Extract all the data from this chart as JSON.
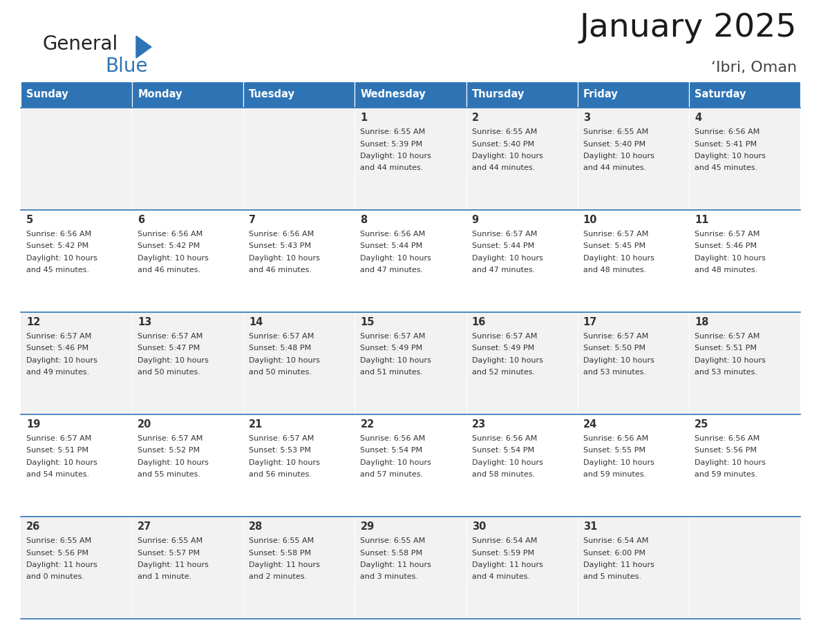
{
  "title": "January 2025",
  "subtitle": "‘Ibri, Oman",
  "header_color": "#2E74B5",
  "header_text_color": "#FFFFFF",
  "cell_bg_row0": "#F2F2F2",
  "cell_bg_row1": "#FFFFFF",
  "day_names": [
    "Sunday",
    "Monday",
    "Tuesday",
    "Wednesday",
    "Thursday",
    "Friday",
    "Saturday"
  ],
  "weeks": [
    [
      {
        "day": "",
        "sunrise": "",
        "sunset": "",
        "daylight": ""
      },
      {
        "day": "",
        "sunrise": "",
        "sunset": "",
        "daylight": ""
      },
      {
        "day": "",
        "sunrise": "",
        "sunset": "",
        "daylight": ""
      },
      {
        "day": "1",
        "sunrise": "6:55 AM",
        "sunset": "5:39 PM",
        "daylight": "10 hours and 44 minutes."
      },
      {
        "day": "2",
        "sunrise": "6:55 AM",
        "sunset": "5:40 PM",
        "daylight": "10 hours and 44 minutes."
      },
      {
        "day": "3",
        "sunrise": "6:55 AM",
        "sunset": "5:40 PM",
        "daylight": "10 hours and 44 minutes."
      },
      {
        "day": "4",
        "sunrise": "6:56 AM",
        "sunset": "5:41 PM",
        "daylight": "10 hours and 45 minutes."
      }
    ],
    [
      {
        "day": "5",
        "sunrise": "6:56 AM",
        "sunset": "5:42 PM",
        "daylight": "10 hours and 45 minutes."
      },
      {
        "day": "6",
        "sunrise": "6:56 AM",
        "sunset": "5:42 PM",
        "daylight": "10 hours and 46 minutes."
      },
      {
        "day": "7",
        "sunrise": "6:56 AM",
        "sunset": "5:43 PM",
        "daylight": "10 hours and 46 minutes."
      },
      {
        "day": "8",
        "sunrise": "6:56 AM",
        "sunset": "5:44 PM",
        "daylight": "10 hours and 47 minutes."
      },
      {
        "day": "9",
        "sunrise": "6:57 AM",
        "sunset": "5:44 PM",
        "daylight": "10 hours and 47 minutes."
      },
      {
        "day": "10",
        "sunrise": "6:57 AM",
        "sunset": "5:45 PM",
        "daylight": "10 hours and 48 minutes."
      },
      {
        "day": "11",
        "sunrise": "6:57 AM",
        "sunset": "5:46 PM",
        "daylight": "10 hours and 48 minutes."
      }
    ],
    [
      {
        "day": "12",
        "sunrise": "6:57 AM",
        "sunset": "5:46 PM",
        "daylight": "10 hours and 49 minutes."
      },
      {
        "day": "13",
        "sunrise": "6:57 AM",
        "sunset": "5:47 PM",
        "daylight": "10 hours and 50 minutes."
      },
      {
        "day": "14",
        "sunrise": "6:57 AM",
        "sunset": "5:48 PM",
        "daylight": "10 hours and 50 minutes."
      },
      {
        "day": "15",
        "sunrise": "6:57 AM",
        "sunset": "5:49 PM",
        "daylight": "10 hours and 51 minutes."
      },
      {
        "day": "16",
        "sunrise": "6:57 AM",
        "sunset": "5:49 PM",
        "daylight": "10 hours and 52 minutes."
      },
      {
        "day": "17",
        "sunrise": "6:57 AM",
        "sunset": "5:50 PM",
        "daylight": "10 hours and 53 minutes."
      },
      {
        "day": "18",
        "sunrise": "6:57 AM",
        "sunset": "5:51 PM",
        "daylight": "10 hours and 53 minutes."
      }
    ],
    [
      {
        "day": "19",
        "sunrise": "6:57 AM",
        "sunset": "5:51 PM",
        "daylight": "10 hours and 54 minutes."
      },
      {
        "day": "20",
        "sunrise": "6:57 AM",
        "sunset": "5:52 PM",
        "daylight": "10 hours and 55 minutes."
      },
      {
        "day": "21",
        "sunrise": "6:57 AM",
        "sunset": "5:53 PM",
        "daylight": "10 hours and 56 minutes."
      },
      {
        "day": "22",
        "sunrise": "6:56 AM",
        "sunset": "5:54 PM",
        "daylight": "10 hours and 57 minutes."
      },
      {
        "day": "23",
        "sunrise": "6:56 AM",
        "sunset": "5:54 PM",
        "daylight": "10 hours and 58 minutes."
      },
      {
        "day": "24",
        "sunrise": "6:56 AM",
        "sunset": "5:55 PM",
        "daylight": "10 hours and 59 minutes."
      },
      {
        "day": "25",
        "sunrise": "6:56 AM",
        "sunset": "5:56 PM",
        "daylight": "10 hours and 59 minutes."
      }
    ],
    [
      {
        "day": "26",
        "sunrise": "6:55 AM",
        "sunset": "5:56 PM",
        "daylight": "11 hours and 0 minutes."
      },
      {
        "day": "27",
        "sunrise": "6:55 AM",
        "sunset": "5:57 PM",
        "daylight": "11 hours and 1 minute."
      },
      {
        "day": "28",
        "sunrise": "6:55 AM",
        "sunset": "5:58 PM",
        "daylight": "11 hours and 2 minutes."
      },
      {
        "day": "29",
        "sunrise": "6:55 AM",
        "sunset": "5:58 PM",
        "daylight": "11 hours and 3 minutes."
      },
      {
        "day": "30",
        "sunrise": "6:54 AM",
        "sunset": "5:59 PM",
        "daylight": "11 hours and 4 minutes."
      },
      {
        "day": "31",
        "sunrise": "6:54 AM",
        "sunset": "6:00 PM",
        "daylight": "11 hours and 5 minutes."
      },
      {
        "day": "",
        "sunrise": "",
        "sunset": "",
        "daylight": ""
      }
    ]
  ],
  "logo_text1": "General",
  "logo_text2": "Blue",
  "logo_color1": "#222222",
  "logo_color2": "#2E74B5",
  "fig_width": 11.88,
  "fig_height": 9.18,
  "dpi": 100
}
